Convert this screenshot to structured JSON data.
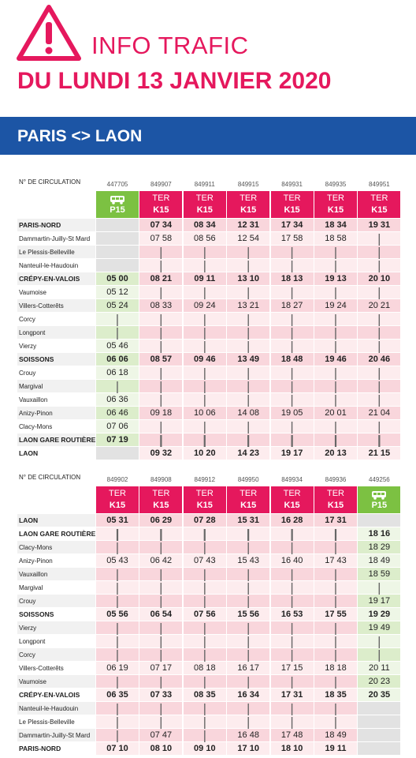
{
  "header": {
    "title": "INFO TRAFIC",
    "date": "DU LUNDI 13 JANVIER 2020",
    "route": "PARIS <> LAON"
  },
  "tables": [
    {
      "number_label": "N° DE CIRCULATION",
      "columns": [
        {
          "number": "447705",
          "line": "P15",
          "color": "#7cc142"
        },
        {
          "number": "849907",
          "mode": "TER",
          "line": "K15",
          "color": "#e5185d"
        },
        {
          "number": "849911",
          "mode": "TER",
          "line": "K15",
          "color": "#e5185d"
        },
        {
          "number": "849915",
          "mode": "TER",
          "line": "K15",
          "color": "#e5185d"
        },
        {
          "number": "849931",
          "mode": "TER",
          "line": "K15",
          "color": "#e5185d"
        },
        {
          "number": "849935",
          "mode": "TER",
          "line": "K15",
          "color": "#e5185d"
        },
        {
          "number": "849951",
          "mode": "TER",
          "line": "K15",
          "color": "#e5185d"
        }
      ],
      "rows": [
        {
          "stop": "PARIS-NORD",
          "major": true,
          "times": [
            null,
            "07 34",
            "08 34",
            "12 31",
            "17 34",
            "18 34",
            "19 31"
          ]
        },
        {
          "stop": "Dammartin-Juilly-St Mard",
          "times": [
            null,
            "07 58",
            "08 56",
            "12 54",
            "17 58",
            "18 58",
            "|"
          ]
        },
        {
          "stop": "Le Plessis-Belleville",
          "times": [
            null,
            "|",
            "|",
            "|",
            "|",
            "|",
            "|"
          ]
        },
        {
          "stop": "Nanteuil-le-Haudouin",
          "times": [
            null,
            "|",
            "|",
            "|",
            "|",
            "|",
            "|"
          ]
        },
        {
          "stop": "CRÉPY-EN-VALOIS",
          "major": true,
          "times": [
            "05 00",
            "08 21",
            "09 11",
            "13 10",
            "18 13",
            "19 13",
            "20 10"
          ]
        },
        {
          "stop": "Vaumoise",
          "times": [
            "05 12",
            "|",
            "|",
            "|",
            "|",
            "|",
            "|"
          ]
        },
        {
          "stop": "Villers-Cotterêts",
          "times": [
            "05 24",
            "08 33",
            "09 24",
            "13 21",
            "18 27",
            "19 24",
            "20 21"
          ]
        },
        {
          "stop": "Corcy",
          "times": [
            "|",
            "|",
            "|",
            "|",
            "|",
            "|",
            "|"
          ]
        },
        {
          "stop": "Longpont",
          "times": [
            "|",
            "|",
            "|",
            "|",
            "|",
            "|",
            "|"
          ]
        },
        {
          "stop": "Vierzy",
          "times": [
            "05 46",
            "|",
            "|",
            "|",
            "|",
            "|",
            "|"
          ]
        },
        {
          "stop": "SOISSONS",
          "major": true,
          "times": [
            "06 06",
            "08 57",
            "09 46",
            "13 49",
            "18 48",
            "19 46",
            "20 46"
          ]
        },
        {
          "stop": "Crouy",
          "times": [
            "06 18",
            "|",
            "|",
            "|",
            "|",
            "|",
            "|"
          ]
        },
        {
          "stop": "Margival",
          "times": [
            "|",
            "|",
            "|",
            "|",
            "|",
            "|",
            "|"
          ]
        },
        {
          "stop": "Vauxaillon",
          "times": [
            "06 36",
            "|",
            "|",
            "|",
            "|",
            "|",
            "|"
          ]
        },
        {
          "stop": "Anizy-Pinon",
          "times": [
            "06 46",
            "09 18",
            "10 06",
            "14 08",
            "19 05",
            "20 01",
            "21 04"
          ]
        },
        {
          "stop": "Clacy-Mons",
          "times": [
            "07 06",
            "|",
            "|",
            "|",
            "|",
            "|",
            "|"
          ]
        },
        {
          "stop": "LAON GARE ROUTIÈRE POMA",
          "major": true,
          "times": [
            "07 19",
            "|",
            "|",
            "|",
            "|",
            "|",
            "|"
          ]
        },
        {
          "stop": "LAON",
          "major": true,
          "times": [
            null,
            "09 32",
            "10 20",
            "14 23",
            "19 17",
            "20 13",
            "21 15"
          ]
        }
      ]
    },
    {
      "number_label": "N° DE CIRCULATION",
      "columns": [
        {
          "number": "849902",
          "mode": "TER",
          "line": "K15",
          "color": "#e5185d"
        },
        {
          "number": "849908",
          "mode": "TER",
          "line": "K15",
          "color": "#e5185d"
        },
        {
          "number": "849912",
          "mode": "TER",
          "line": "K15",
          "color": "#e5185d"
        },
        {
          "number": "849950",
          "mode": "TER",
          "line": "K15",
          "color": "#e5185d"
        },
        {
          "number": "849934",
          "mode": "TER",
          "line": "K15",
          "color": "#e5185d"
        },
        {
          "number": "849936",
          "mode": "TER",
          "line": "K15",
          "color": "#e5185d"
        },
        {
          "number": "449256",
          "line": "P15",
          "color": "#7cc142"
        }
      ],
      "rows": [
        {
          "stop": "LAON",
          "major": true,
          "times": [
            "05 31",
            "06 29",
            "07 28",
            "15 31",
            "16 28",
            "17 31",
            null
          ]
        },
        {
          "stop": "LAON GARE ROUTIÈRE POMA",
          "major": true,
          "times": [
            "|",
            "|",
            "|",
            "|",
            "|",
            "|",
            "18 16"
          ]
        },
        {
          "stop": "Clacy-Mons",
          "times": [
            "|",
            "|",
            "|",
            "|",
            "|",
            "|",
            "18 29"
          ]
        },
        {
          "stop": "Anizy-Pinon",
          "times": [
            "05 43",
            "06 42",
            "07 43",
            "15 43",
            "16 40",
            "17 43",
            "18 49"
          ]
        },
        {
          "stop": "Vauxaillon",
          "times": [
            "|",
            "|",
            "|",
            "|",
            "|",
            "|",
            "18 59"
          ]
        },
        {
          "stop": "Margival",
          "times": [
            "|",
            "|",
            "|",
            "|",
            "|",
            "|",
            "|"
          ]
        },
        {
          "stop": "Crouy",
          "times": [
            "|",
            "|",
            "|",
            "|",
            "|",
            "|",
            "19 17"
          ]
        },
        {
          "stop": "SOISSONS",
          "major": true,
          "times": [
            "05 56",
            "06 54",
            "07 56",
            "15 56",
            "16 53",
            "17 55",
            "19 29"
          ]
        },
        {
          "stop": "Vierzy",
          "times": [
            "|",
            "|",
            "|",
            "|",
            "|",
            "|",
            "19 49"
          ]
        },
        {
          "stop": "Longpont",
          "times": [
            "|",
            "|",
            "|",
            "|",
            "|",
            "|",
            "|"
          ]
        },
        {
          "stop": "Corcy",
          "times": [
            "|",
            "|",
            "|",
            "|",
            "|",
            "|",
            "|"
          ]
        },
        {
          "stop": "Villers-Cotterêts",
          "times": [
            "06 19",
            "07 17",
            "08 18",
            "16 17",
            "17 15",
            "18 18",
            "20 11"
          ]
        },
        {
          "stop": "Vaumoise",
          "times": [
            "|",
            "|",
            "|",
            "|",
            "|",
            "|",
            "20 23"
          ]
        },
        {
          "stop": "CRÉPY-EN-VALOIS",
          "major": true,
          "times": [
            "06 35",
            "07 33",
            "08 35",
            "16 34",
            "17 31",
            "18 35",
            "20 35"
          ]
        },
        {
          "stop": "Nanteuil-le-Haudouin",
          "times": [
            "|",
            "|",
            "|",
            "|",
            "|",
            "|",
            null
          ]
        },
        {
          "stop": "Le Plessis-Belleville",
          "times": [
            "|",
            "|",
            "|",
            "|",
            "|",
            "|",
            null
          ]
        },
        {
          "stop": "Dammartin-Juilly-St Mard",
          "times": [
            "|",
            "07 47",
            "|",
            "16 48",
            "17 48",
            "18 49",
            null
          ]
        },
        {
          "stop": "PARIS-NORD",
          "major": true,
          "times": [
            "07 10",
            "08 10",
            "09 10",
            "17 10",
            "18 10",
            "19 11",
            null
          ]
        }
      ]
    }
  ]
}
